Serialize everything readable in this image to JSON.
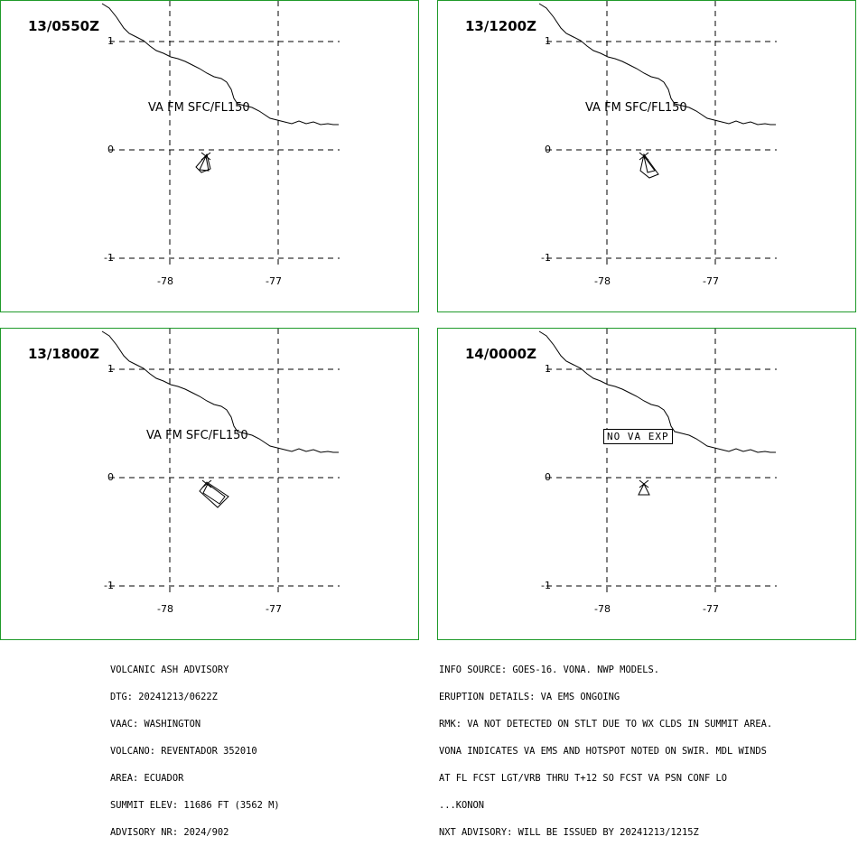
{
  "panels": [
    {
      "time": "13/0550Z",
      "label": "VA FM SFC/FL150",
      "y_ticks": [
        "1",
        "0",
        "-1"
      ],
      "x_ticks": [
        "-78",
        "-77"
      ]
    },
    {
      "time": "13/1200Z",
      "label": "VA FM SFC/FL150",
      "y_ticks": [
        "1",
        "0",
        "-1"
      ],
      "x_ticks": [
        "-78",
        "-77"
      ]
    },
    {
      "time": "13/1800Z",
      "label": "VA FM SFC/FL150",
      "y_ticks": [
        "1",
        "0",
        "-1"
      ],
      "x_ticks": [
        "-78",
        "-77"
      ]
    },
    {
      "time": "14/0000Z",
      "label": "NO VA EXP",
      "y_ticks": [
        "1",
        "0",
        "-1"
      ],
      "x_ticks": [
        "-78",
        "-77"
      ]
    }
  ],
  "advisory_left": [
    "VOLCANIC ASH ADVISORY",
    "DTG: 20241213/0622Z",
    "VAAC: WASHINGTON",
    "VOLCANO: REVENTADOR 352010",
    "AREA: ECUADOR",
    "SUMMIT ELEV: 11686 FT (3562 M)",
    "ADVISORY NR: 2024/902"
  ],
  "advisory_right": [
    "INFO SOURCE: GOES-16. VONA. NWP MODELS.",
    "ERUPTION DETAILS: VA EMS ONGOING",
    "RMK: VA NOT DETECTED ON STLT DUE TO WX CLDS IN SUMMIT AREA.",
    "VONA INDICATES VA EMS AND HOTSPOT NOTED ON SWIR. MDL WINDS",
    "AT FL FCST LGT/VRB THRU T+12 SO FCST VA PSN CONF LO",
    "...KONON",
    "NXT ADVISORY: WILL BE ISSUED BY 20241213/1215Z"
  ],
  "colors": {
    "panel_border": "#1f9a2a",
    "lines": "#000000"
  },
  "icons": {
    "volcano": "volcano-x-icon"
  }
}
